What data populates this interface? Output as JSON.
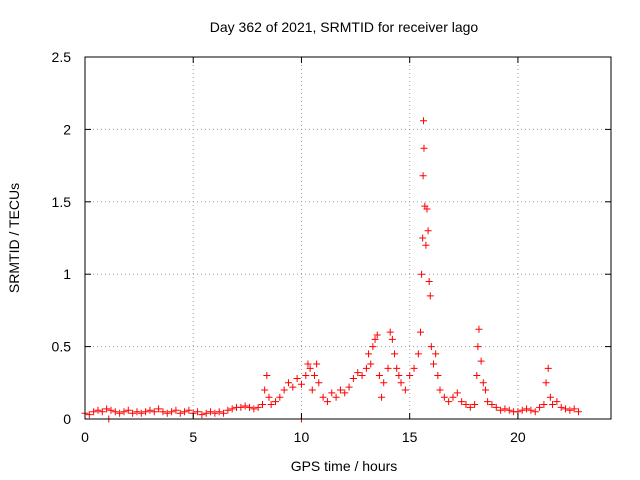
{
  "chart_data": {
    "type": "scatter",
    "title": "Day 362 of 2021, SRMTID for receiver lago",
    "xlabel": "GPS time / hours",
    "ylabel": "SRMTID / TECUs",
    "xlim": [
      0,
      24.3
    ],
    "ylim": [
      0,
      2.5
    ],
    "xticks": [
      0,
      5,
      10,
      15,
      20
    ],
    "xtick_labels": [
      "0",
      "5",
      "10",
      "15",
      "20"
    ],
    "yticks": [
      0,
      0.5,
      1,
      1.5,
      2,
      2.5
    ],
    "ytick_labels": [
      "0",
      "0.5",
      "1",
      "1.5",
      "2",
      "2.5"
    ],
    "grid": true,
    "marker": "+",
    "color": "#ff0000",
    "series": [
      {
        "name": "SRMTID",
        "points": [
          [
            0.0,
            0.04
          ],
          [
            0.2,
            0.03
          ],
          [
            0.4,
            0.05
          ],
          [
            0.6,
            0.06
          ],
          [
            0.8,
            0.05
          ],
          [
            1.0,
            0.07
          ],
          [
            1.1,
            0.0
          ],
          [
            1.2,
            0.06
          ],
          [
            1.4,
            0.05
          ],
          [
            1.6,
            0.04
          ],
          [
            1.8,
            0.05
          ],
          [
            2.0,
            0.06
          ],
          [
            2.2,
            0.04
          ],
          [
            2.4,
            0.05
          ],
          [
            2.6,
            0.04
          ],
          [
            2.8,
            0.05
          ],
          [
            3.0,
            0.06
          ],
          [
            3.2,
            0.05
          ],
          [
            3.4,
            0.07
          ],
          [
            3.6,
            0.05
          ],
          [
            3.8,
            0.04
          ],
          [
            4.0,
            0.05
          ],
          [
            4.2,
            0.06
          ],
          [
            4.4,
            0.04
          ],
          [
            4.6,
            0.05
          ],
          [
            4.8,
            0.06
          ],
          [
            5.0,
            0.04
          ],
          [
            5.2,
            0.05
          ],
          [
            5.4,
            0.03
          ],
          [
            5.6,
            0.04
          ],
          [
            5.8,
            0.05
          ],
          [
            6.0,
            0.04
          ],
          [
            6.2,
            0.05
          ],
          [
            6.4,
            0.04
          ],
          [
            6.6,
            0.06
          ],
          [
            6.8,
            0.07
          ],
          [
            7.0,
            0.08
          ],
          [
            7.2,
            0.08
          ],
          [
            7.4,
            0.09
          ],
          [
            7.6,
            0.08
          ],
          [
            7.8,
            0.07
          ],
          [
            8.0,
            0.08
          ],
          [
            8.2,
            0.1
          ],
          [
            8.3,
            0.2
          ],
          [
            8.4,
            0.3
          ],
          [
            8.5,
            0.15
          ],
          [
            8.6,
            0.1
          ],
          [
            8.8,
            0.12
          ],
          [
            9.0,
            0.15
          ],
          [
            9.2,
            0.2
          ],
          [
            9.4,
            0.25
          ],
          [
            9.6,
            0.22
          ],
          [
            9.8,
            0.28
          ],
          [
            10.0,
            0.24
          ],
          [
            10.0,
            0.0
          ],
          [
            10.2,
            0.3
          ],
          [
            10.3,
            0.38
          ],
          [
            10.4,
            0.35
          ],
          [
            10.5,
            0.2
          ],
          [
            10.6,
            0.3
          ],
          [
            10.7,
            0.38
          ],
          [
            10.8,
            0.25
          ],
          [
            11.0,
            0.15
          ],
          [
            11.2,
            0.12
          ],
          [
            11.4,
            0.18
          ],
          [
            11.6,
            0.15
          ],
          [
            11.8,
            0.2
          ],
          [
            12.0,
            0.18
          ],
          [
            12.2,
            0.22
          ],
          [
            12.4,
            0.28
          ],
          [
            12.6,
            0.32
          ],
          [
            12.8,
            0.3
          ],
          [
            13.0,
            0.35
          ],
          [
            13.1,
            0.45
          ],
          [
            13.2,
            0.38
          ],
          [
            13.3,
            0.5
          ],
          [
            13.4,
            0.55
          ],
          [
            13.5,
            0.58
          ],
          [
            13.6,
            0.3
          ],
          [
            13.7,
            0.15
          ],
          [
            13.8,
            0.25
          ],
          [
            14.0,
            0.35
          ],
          [
            14.1,
            0.6
          ],
          [
            14.2,
            0.55
          ],
          [
            14.3,
            0.45
          ],
          [
            14.4,
            0.35
          ],
          [
            14.5,
            0.3
          ],
          [
            14.6,
            0.25
          ],
          [
            14.8,
            0.2
          ],
          [
            15.0,
            0.3
          ],
          [
            15.2,
            0.35
          ],
          [
            15.4,
            0.45
          ],
          [
            15.5,
            0.6
          ],
          [
            15.55,
            1.0
          ],
          [
            15.6,
            1.25
          ],
          [
            15.62,
            1.68
          ],
          [
            15.64,
            2.06
          ],
          [
            15.66,
            1.87
          ],
          [
            15.7,
            1.47
          ],
          [
            15.75,
            1.2
          ],
          [
            15.8,
            1.45
          ],
          [
            15.85,
            1.3
          ],
          [
            15.9,
            0.95
          ],
          [
            15.95,
            0.85
          ],
          [
            16.0,
            0.5
          ],
          [
            16.1,
            0.38
          ],
          [
            16.2,
            0.45
          ],
          [
            16.3,
            0.3
          ],
          [
            16.4,
            0.2
          ],
          [
            16.6,
            0.15
          ],
          [
            16.8,
            0.12
          ],
          [
            17.0,
            0.15
          ],
          [
            17.2,
            0.18
          ],
          [
            17.4,
            0.12
          ],
          [
            17.6,
            0.1
          ],
          [
            17.8,
            0.08
          ],
          [
            18.0,
            0.1
          ],
          [
            18.1,
            0.3
          ],
          [
            18.15,
            0.5
          ],
          [
            18.2,
            0.62
          ],
          [
            18.3,
            0.4
          ],
          [
            18.4,
            0.25
          ],
          [
            18.5,
            0.2
          ],
          [
            18.6,
            0.12
          ],
          [
            18.8,
            0.1
          ],
          [
            19.0,
            0.08
          ],
          [
            19.2,
            0.06
          ],
          [
            19.4,
            0.07
          ],
          [
            19.6,
            0.06
          ],
          [
            19.8,
            0.05
          ],
          [
            20.0,
            0.05
          ],
          [
            20.2,
            0.06
          ],
          [
            20.4,
            0.07
          ],
          [
            20.6,
            0.06
          ],
          [
            20.8,
            0.05
          ],
          [
            21.0,
            0.08
          ],
          [
            21.2,
            0.1
          ],
          [
            21.3,
            0.25
          ],
          [
            21.4,
            0.35
          ],
          [
            21.5,
            0.15
          ],
          [
            21.6,
            0.1
          ],
          [
            21.8,
            0.12
          ],
          [
            22.0,
            0.08
          ],
          [
            22.2,
            0.07
          ],
          [
            22.4,
            0.06
          ],
          [
            22.6,
            0.07
          ],
          [
            22.8,
            0.05
          ]
        ]
      }
    ]
  }
}
